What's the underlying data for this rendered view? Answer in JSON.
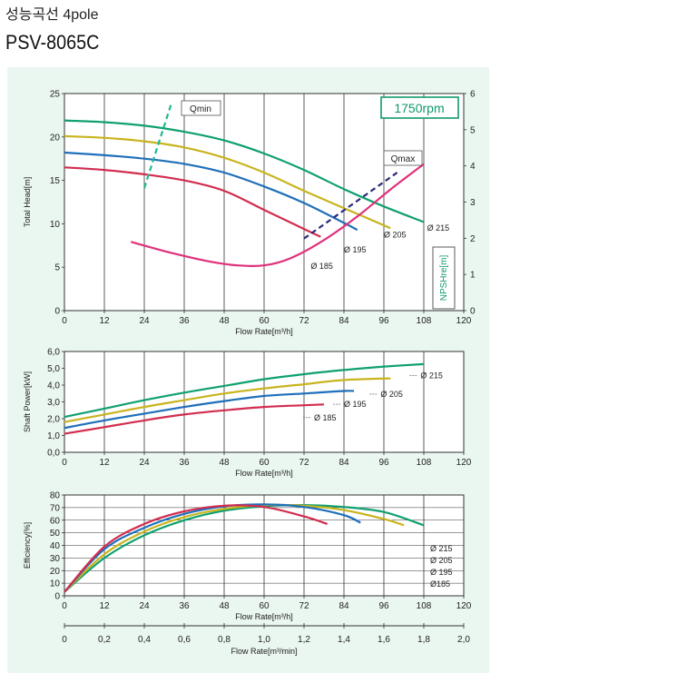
{
  "header": {
    "title": "성능곡선 4pole",
    "model": "PSV-8065C"
  },
  "colors": {
    "panel_bg": "#eaf6f0",
    "d215": "#10a070",
    "d205": "#c8b41e",
    "d195": "#1f6fba",
    "d185": "#d22d4f",
    "npsh": "#e0307a",
    "qmin": "#20b890",
    "qmax": "#2a2a7a",
    "rpm": "#109a6a"
  },
  "chart_data": [
    {
      "type": "line",
      "id": "head",
      "xlabel": "Flow Rate[m³/h]",
      "ylabel": "Total Head[m]",
      "y2label": "NPSHre[m]",
      "xlim": [
        0,
        120
      ],
      "ylim": [
        0,
        25
      ],
      "y2lim": [
        0,
        6
      ],
      "xticks": [
        "0",
        "12",
        "24",
        "36",
        "48",
        "60",
        "72",
        "84",
        "96",
        "108",
        "120"
      ],
      "yticks": [
        "0",
        "5",
        "10",
        "15",
        "20",
        "25"
      ],
      "y2ticks": [
        "0",
        "1",
        "2",
        "3",
        "4",
        "5",
        "6"
      ],
      "rpm_label": "1750rpm",
      "qmin_label": "Qmin",
      "qmax_label": "Qmax",
      "series": [
        {
          "name": "Ø 215",
          "color_key": "d215",
          "x": [
            0,
            12,
            24,
            36,
            48,
            60,
            72,
            84,
            96,
            108
          ],
          "y": [
            21.9,
            21.7,
            21.3,
            20.6,
            19.6,
            18.1,
            16.2,
            14.0,
            12.0,
            10.2
          ]
        },
        {
          "name": "Ø 205",
          "color_key": "d205",
          "x": [
            0,
            12,
            24,
            36,
            48,
            60,
            72,
            84,
            98
          ],
          "y": [
            20.1,
            19.9,
            19.5,
            18.8,
            17.6,
            15.9,
            13.8,
            11.8,
            9.5
          ]
        },
        {
          "name": "Ø 195",
          "color_key": "d195",
          "x": [
            0,
            12,
            24,
            36,
            48,
            60,
            72,
            84,
            88
          ],
          "y": [
            18.2,
            17.9,
            17.5,
            16.9,
            15.9,
            14.3,
            12.4,
            10.1,
            9.3
          ]
        },
        {
          "name": "Ø 185",
          "color_key": "d185",
          "x": [
            0,
            12,
            24,
            36,
            48,
            60,
            72,
            77
          ],
          "y": [
            16.5,
            16.2,
            15.7,
            15.0,
            13.8,
            11.6,
            9.4,
            8.5
          ]
        },
        {
          "name": "NPSHre",
          "color_key": "npsh",
          "axis": "y2",
          "x": [
            20,
            32,
            44,
            52,
            60,
            68,
            78,
            88,
            98,
            108
          ],
          "y": [
            1.9,
            1.6,
            1.35,
            1.25,
            1.25,
            1.45,
            1.95,
            2.6,
            3.35,
            4.05
          ]
        }
      ],
      "qmin_line": {
        "x": [
          24,
          32
        ],
        "y": [
          14.1,
          23.7
        ]
      },
      "qmax_line": {
        "x": [
          72,
          100
        ],
        "y": [
          8.3,
          15.9
        ]
      },
      "labels": [
        {
          "text": "Ø 215",
          "x": 109,
          "y": 9.2
        },
        {
          "text": "Ø 205",
          "x": 96,
          "y": 8.4
        },
        {
          "text": "Ø 195",
          "x": 84,
          "y": 6.7
        },
        {
          "text": "Ø 185",
          "x": 74,
          "y": 4.8
        }
      ]
    },
    {
      "type": "line",
      "id": "power",
      "xlabel": "Flow Rate[m³/h]",
      "ylabel": "Shaft Power[kW]",
      "xlim": [
        0,
        120
      ],
      "ylim": [
        0,
        6
      ],
      "xticks": [
        "0",
        "12",
        "24",
        "36",
        "48",
        "60",
        "72",
        "84",
        "96",
        "108",
        "120"
      ],
      "yticks": [
        "0,0",
        "1,0",
        "2,0",
        "3,0",
        "4,0",
        "5,0",
        "6,0"
      ],
      "series": [
        {
          "name": "Ø 215",
          "color_key": "d215",
          "x": [
            0,
            12,
            24,
            36,
            48,
            60,
            72,
            84,
            96,
            108
          ],
          "y": [
            2.1,
            2.6,
            3.1,
            3.55,
            3.95,
            4.35,
            4.65,
            4.9,
            5.1,
            5.25
          ]
        },
        {
          "name": "Ø 205",
          "color_key": "d205",
          "x": [
            0,
            12,
            24,
            36,
            48,
            60,
            72,
            84,
            98
          ],
          "y": [
            1.8,
            2.25,
            2.7,
            3.1,
            3.5,
            3.8,
            4.05,
            4.3,
            4.4
          ]
        },
        {
          "name": "Ø 195",
          "color_key": "d195",
          "x": [
            0,
            12,
            24,
            36,
            48,
            60,
            72,
            84,
            87
          ],
          "y": [
            1.45,
            1.9,
            2.3,
            2.7,
            3.05,
            3.35,
            3.5,
            3.65,
            3.65
          ]
        },
        {
          "name": "Ø 185",
          "color_key": "d185",
          "x": [
            0,
            12,
            24,
            36,
            48,
            60,
            72,
            78
          ],
          "y": [
            1.1,
            1.5,
            1.9,
            2.25,
            2.5,
            2.7,
            2.8,
            2.85
          ]
        }
      ],
      "labels": [
        {
          "text": "Ø 215",
          "x": 107,
          "y": 4.4
        },
        {
          "text": "Ø 205",
          "x": 95,
          "y": 3.3
        },
        {
          "text": "Ø 195",
          "x": 84,
          "y": 2.7
        },
        {
          "text": "Ø 185",
          "x": 75,
          "y": 1.9
        }
      ]
    },
    {
      "type": "line",
      "id": "efficiency",
      "xlabel": "Flow Rate[m³/h]",
      "ylabel": "Efficiency[%]",
      "xlim": [
        0,
        120
      ],
      "ylim": [
        0,
        80
      ],
      "xticks": [
        "0",
        "12",
        "24",
        "36",
        "48",
        "60",
        "72",
        "84",
        "96",
        "108",
        "120"
      ],
      "yticks": [
        "0",
        "10",
        "20",
        "30",
        "40",
        "50",
        "60",
        "70",
        "80"
      ],
      "series": [
        {
          "name": "Ø 215",
          "color_key": "d215",
          "x": [
            0,
            12,
            24,
            36,
            48,
            60,
            72,
            84,
            96,
            108
          ],
          "y": [
            3,
            30,
            48,
            60,
            67.5,
            71,
            72,
            70.5,
            66.5,
            56
          ]
        },
        {
          "name": "Ø 205",
          "color_key": "d205",
          "x": [
            0,
            12,
            24,
            36,
            48,
            60,
            72,
            84,
            96,
            102
          ],
          "y": [
            3,
            33,
            51,
            62.5,
            69,
            72,
            71.5,
            68,
            61,
            56
          ]
        },
        {
          "name": "Ø 195",
          "color_key": "d195",
          "x": [
            0,
            12,
            24,
            36,
            48,
            60,
            72,
            84,
            89
          ],
          "y": [
            3,
            37,
            54,
            65,
            71,
            72.5,
            70.5,
            64,
            58
          ]
        },
        {
          "name": "Ø 185",
          "color_key": "d185",
          "x": [
            0,
            12,
            24,
            36,
            48,
            60,
            72,
            79
          ],
          "y": [
            3,
            39,
            57,
            67,
            71.5,
            70.5,
            63,
            57
          ]
        }
      ],
      "legend": [
        "Ø 215",
        "Ø 205",
        "Ø 195",
        "Ø185"
      ]
    },
    {
      "type": "axis",
      "id": "flow_min_axis",
      "xlabel": "Flow Rate[m³/min]",
      "xlim": [
        0,
        2.0
      ],
      "xticks": [
        "0",
        "0,2",
        "0,4",
        "0,6",
        "0,8",
        "1,0",
        "1,2",
        "1,4",
        "1,6",
        "1,8",
        "2,0"
      ]
    }
  ]
}
